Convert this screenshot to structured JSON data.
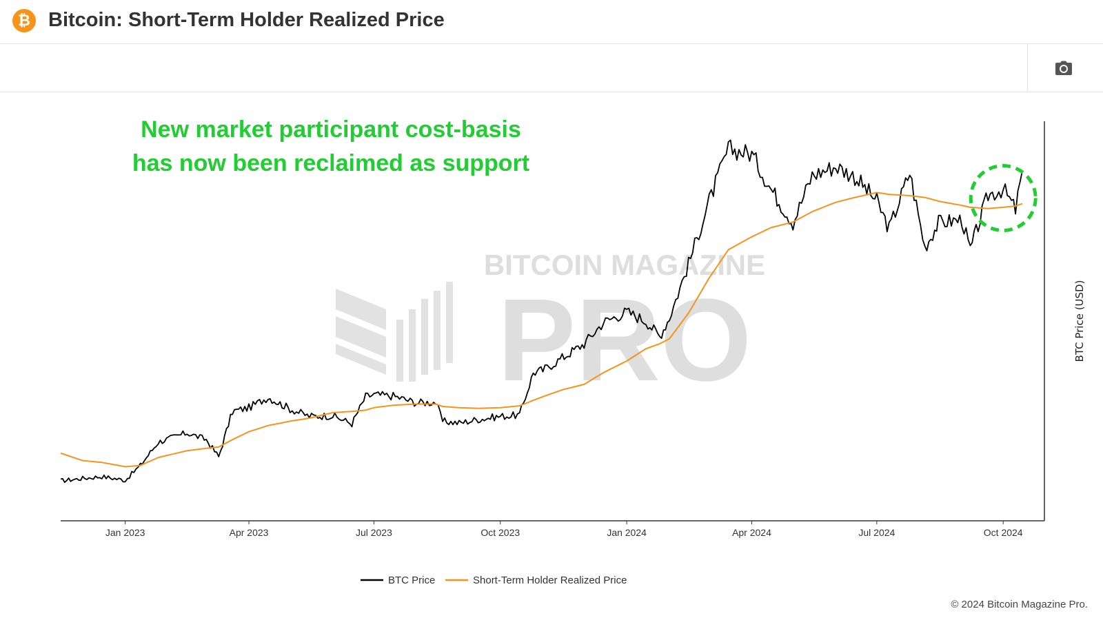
{
  "header": {
    "title": "Bitcoin: Short-Term Holder Realized Price",
    "logo_glyph": "₿",
    "logo_color": "#f7931a"
  },
  "toolbar": {
    "camera_icon": "camera-icon"
  },
  "annotation": {
    "line1": "New market participant cost-basis",
    "line2": "has now been reclaimed as support",
    "color": "#22cc33"
  },
  "footer": {
    "copyright": "© 2024 Bitcoin Magazine Pro."
  },
  "colors": {
    "btc": "#000000",
    "sth": "#f7931a",
    "highlight": "#22cc33",
    "watermark": "#d9d9d9"
  },
  "chart_data": {
    "type": "line",
    "title": "Bitcoin: Short-Term Holder Realized Price",
    "xlabel": "",
    "ylabel": "BTC Price (USD)",
    "x_ticks": [
      "Jan 2023",
      "Apr 2023",
      "Jul 2023",
      "Oct 2023",
      "Jan 2024",
      "Apr 2024",
      "Jul 2024",
      "Oct 2024"
    ],
    "x": [
      "2022-11-15",
      "2022-12-01",
      "2022-12-15",
      "2023-01-01",
      "2023-01-12",
      "2023-01-25",
      "2023-02-15",
      "2023-03-01",
      "2023-03-10",
      "2023-03-20",
      "2023-04-01",
      "2023-04-15",
      "2023-05-01",
      "2023-05-15",
      "2023-06-01",
      "2023-06-15",
      "2023-06-25",
      "2023-07-01",
      "2023-07-15",
      "2023-08-01",
      "2023-08-15",
      "2023-08-20",
      "2023-09-01",
      "2023-09-15",
      "2023-10-01",
      "2023-10-15",
      "2023-10-25",
      "2023-11-01",
      "2023-11-15",
      "2023-12-01",
      "2023-12-15",
      "2024-01-01",
      "2024-01-15",
      "2024-01-25",
      "2024-02-01",
      "2024-02-15",
      "2024-03-01",
      "2024-03-15",
      "2024-04-01",
      "2024-04-15",
      "2024-05-01",
      "2024-05-15",
      "2024-06-01",
      "2024-06-15",
      "2024-07-01",
      "2024-07-10",
      "2024-07-25",
      "2024-08-05",
      "2024-08-15",
      "2024-09-01",
      "2024-09-07",
      "2024-09-20",
      "2024-10-01",
      "2024-10-10",
      "2024-10-15"
    ],
    "series": [
      {
        "name": "BTC Price",
        "color": "#000000",
        "values": [
          16500,
          16900,
          17200,
          16600,
          19000,
          22800,
          24300,
          23200,
          20400,
          27800,
          28400,
          30100,
          28200,
          27000,
          27100,
          25800,
          30200,
          30500,
          30300,
          29200,
          29300,
          26200,
          25900,
          26500,
          27000,
          27200,
          34100,
          34500,
          36500,
          38800,
          42300,
          44000,
          42500,
          40000,
          43000,
          51800,
          62000,
          70500,
          69700,
          64000,
          58500,
          66200,
          67700,
          66000,
          62000,
          57500,
          66700,
          54500,
          58500,
          59000,
          54000,
          63000,
          64000,
          60600,
          67000
        ],
        "is_bold": true
      },
      {
        "name": "Short-Term Holder Realized Price",
        "color": "#f7931a",
        "values": [
          21000,
          19800,
          19500,
          18800,
          19000,
          20300,
          21400,
          21800,
          22000,
          23200,
          24500,
          25500,
          26200,
          26700,
          27600,
          27800,
          28000,
          28400,
          28800,
          29000,
          29000,
          28600,
          28400,
          28300,
          28400,
          28700,
          29600,
          30200,
          31300,
          32200,
          34100,
          36000,
          38000,
          38800,
          39600,
          43800,
          49500,
          54100,
          56200,
          57700,
          58600,
          60300,
          61800,
          62600,
          63400,
          63100,
          62900,
          62600,
          62000,
          61300,
          61000,
          60800,
          61000,
          61200,
          61600
        ]
      }
    ],
    "ylim": [
      10000,
      75000
    ],
    "y_scale": "linear",
    "grid": false,
    "legend_position": "bottom-center",
    "highlight": {
      "shape": "dashed-circle",
      "around_date": "2024-10-01",
      "around_value": 62500
    },
    "watermark": {
      "line1": "BITCOIN MAGAZINE",
      "line2": "PRO"
    }
  }
}
